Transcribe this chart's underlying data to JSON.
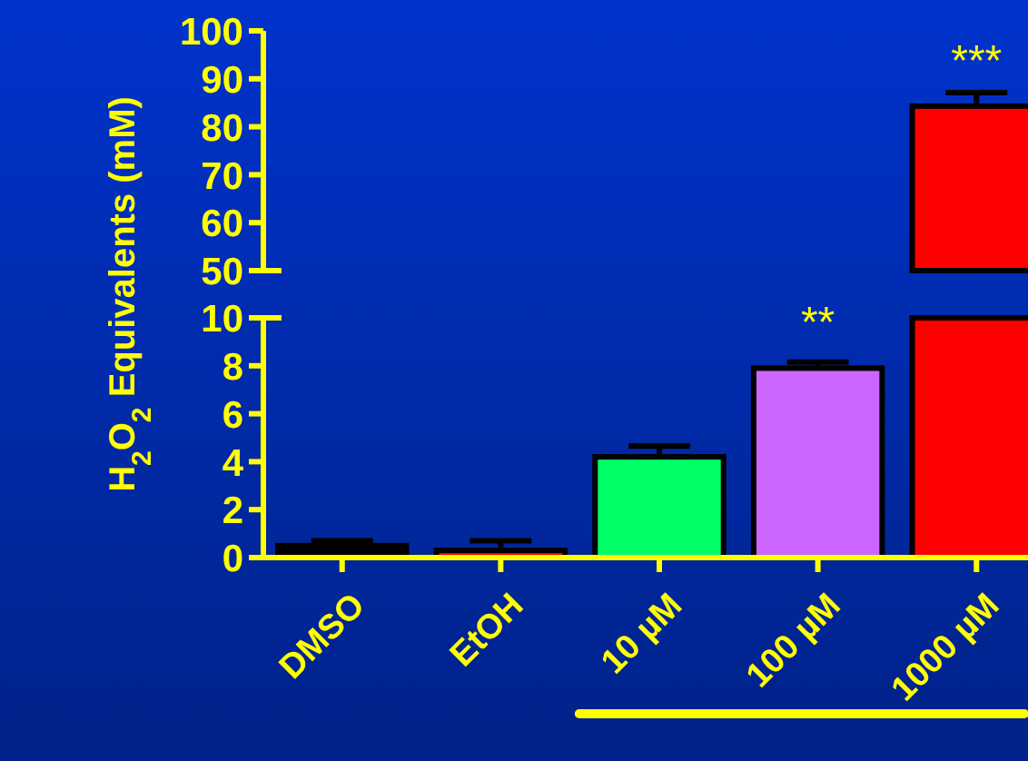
{
  "chart_data": [
    {
      "type": "bar",
      "ylabel": "H$_{2}$O$_{2}$ Equivalents (mM)",
      "categories": [
        "DMSO",
        "EtOH",
        "10 µM",
        "100 µM",
        "1000 µM"
      ],
      "values": [
        null,
        null,
        null,
        null,
        84.3
      ],
      "colors": [
        "#000000",
        "#ff0000",
        "#00ff66",
        "#cc66ff",
        "#ff0000"
      ],
      "errors": [
        null,
        null,
        null,
        null,
        [
          84.3,
          87.1
        ]
      ],
      "ylim": [
        50,
        100
      ],
      "yticks": [
        50,
        60,
        70,
        80,
        90,
        100
      ],
      "tick_labels": "y",
      "annotations": [
        {
          "text": "***",
          "x": "1000 µM",
          "y": 84.3
        }
      ]
    },
    {
      "type": "bar",
      "categories": [
        "DMSO",
        "EtOH",
        "10 µM",
        "100 µM",
        "1000 µM"
      ],
      "values": [
        0.5,
        0.3,
        4.2,
        7.9,
        null
      ],
      "colors": [
        "#000000",
        "#ff0000",
        "#00ff66",
        "#cc66ff",
        "#ff0000"
      ],
      "errors": [
        [
          0.5,
          0.7
        ],
        [
          0.3,
          0.7
        ],
        [
          4.2,
          4.65
        ],
        [
          7.9,
          8.15
        ],
        null
      ],
      "ylim": [
        0,
        10
      ],
      "yticks": [
        0,
        2,
        4,
        6,
        8,
        10
      ],
      "annotations": [
        {
          "text": "**",
          "x": "100 µM",
          "y": 7.9
        }
      ]
    }
  ]
}
